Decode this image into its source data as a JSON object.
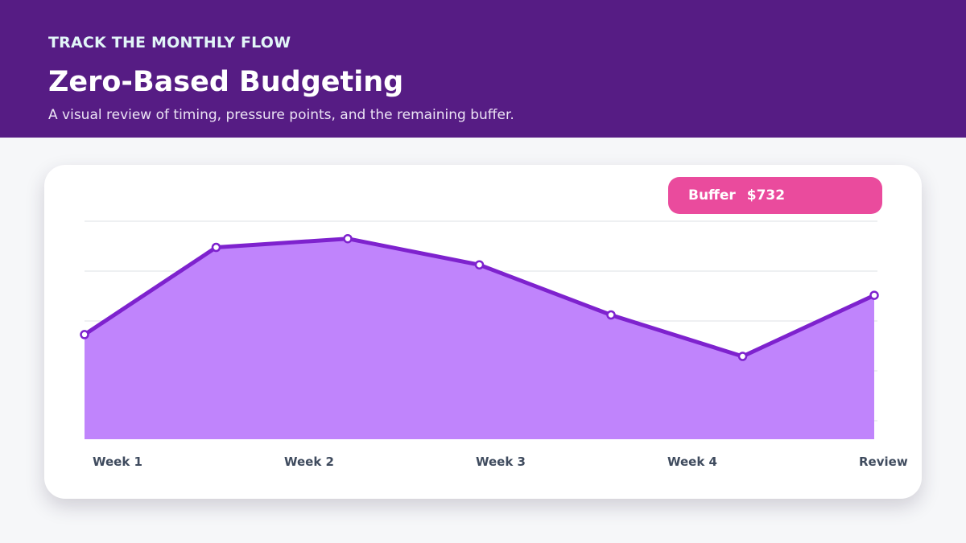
{
  "header": {
    "eyebrow": "TRACK THE MONTHLY FLOW",
    "title": "Zero-Based Budgeting",
    "subtitle": "A visual review of timing, pressure points, and the remaining buffer."
  },
  "badge": {
    "label": "Buffer",
    "value": "$732"
  },
  "colors": {
    "header_bg": "#561c84",
    "line": "#7e22ce",
    "area": "#c084fc",
    "badge": "#ea4b9d"
  },
  "chart_data": {
    "type": "area",
    "title": "",
    "xlabel": "",
    "ylabel": "",
    "x_tick_labels": [
      "Week 1",
      "Week 2",
      "Week 3",
      "Week 4",
      "Review"
    ],
    "points": [
      48,
      88,
      92,
      80,
      57,
      38,
      66
    ],
    "ylim": [
      0,
      100
    ],
    "grid": true,
    "legend": "none"
  }
}
